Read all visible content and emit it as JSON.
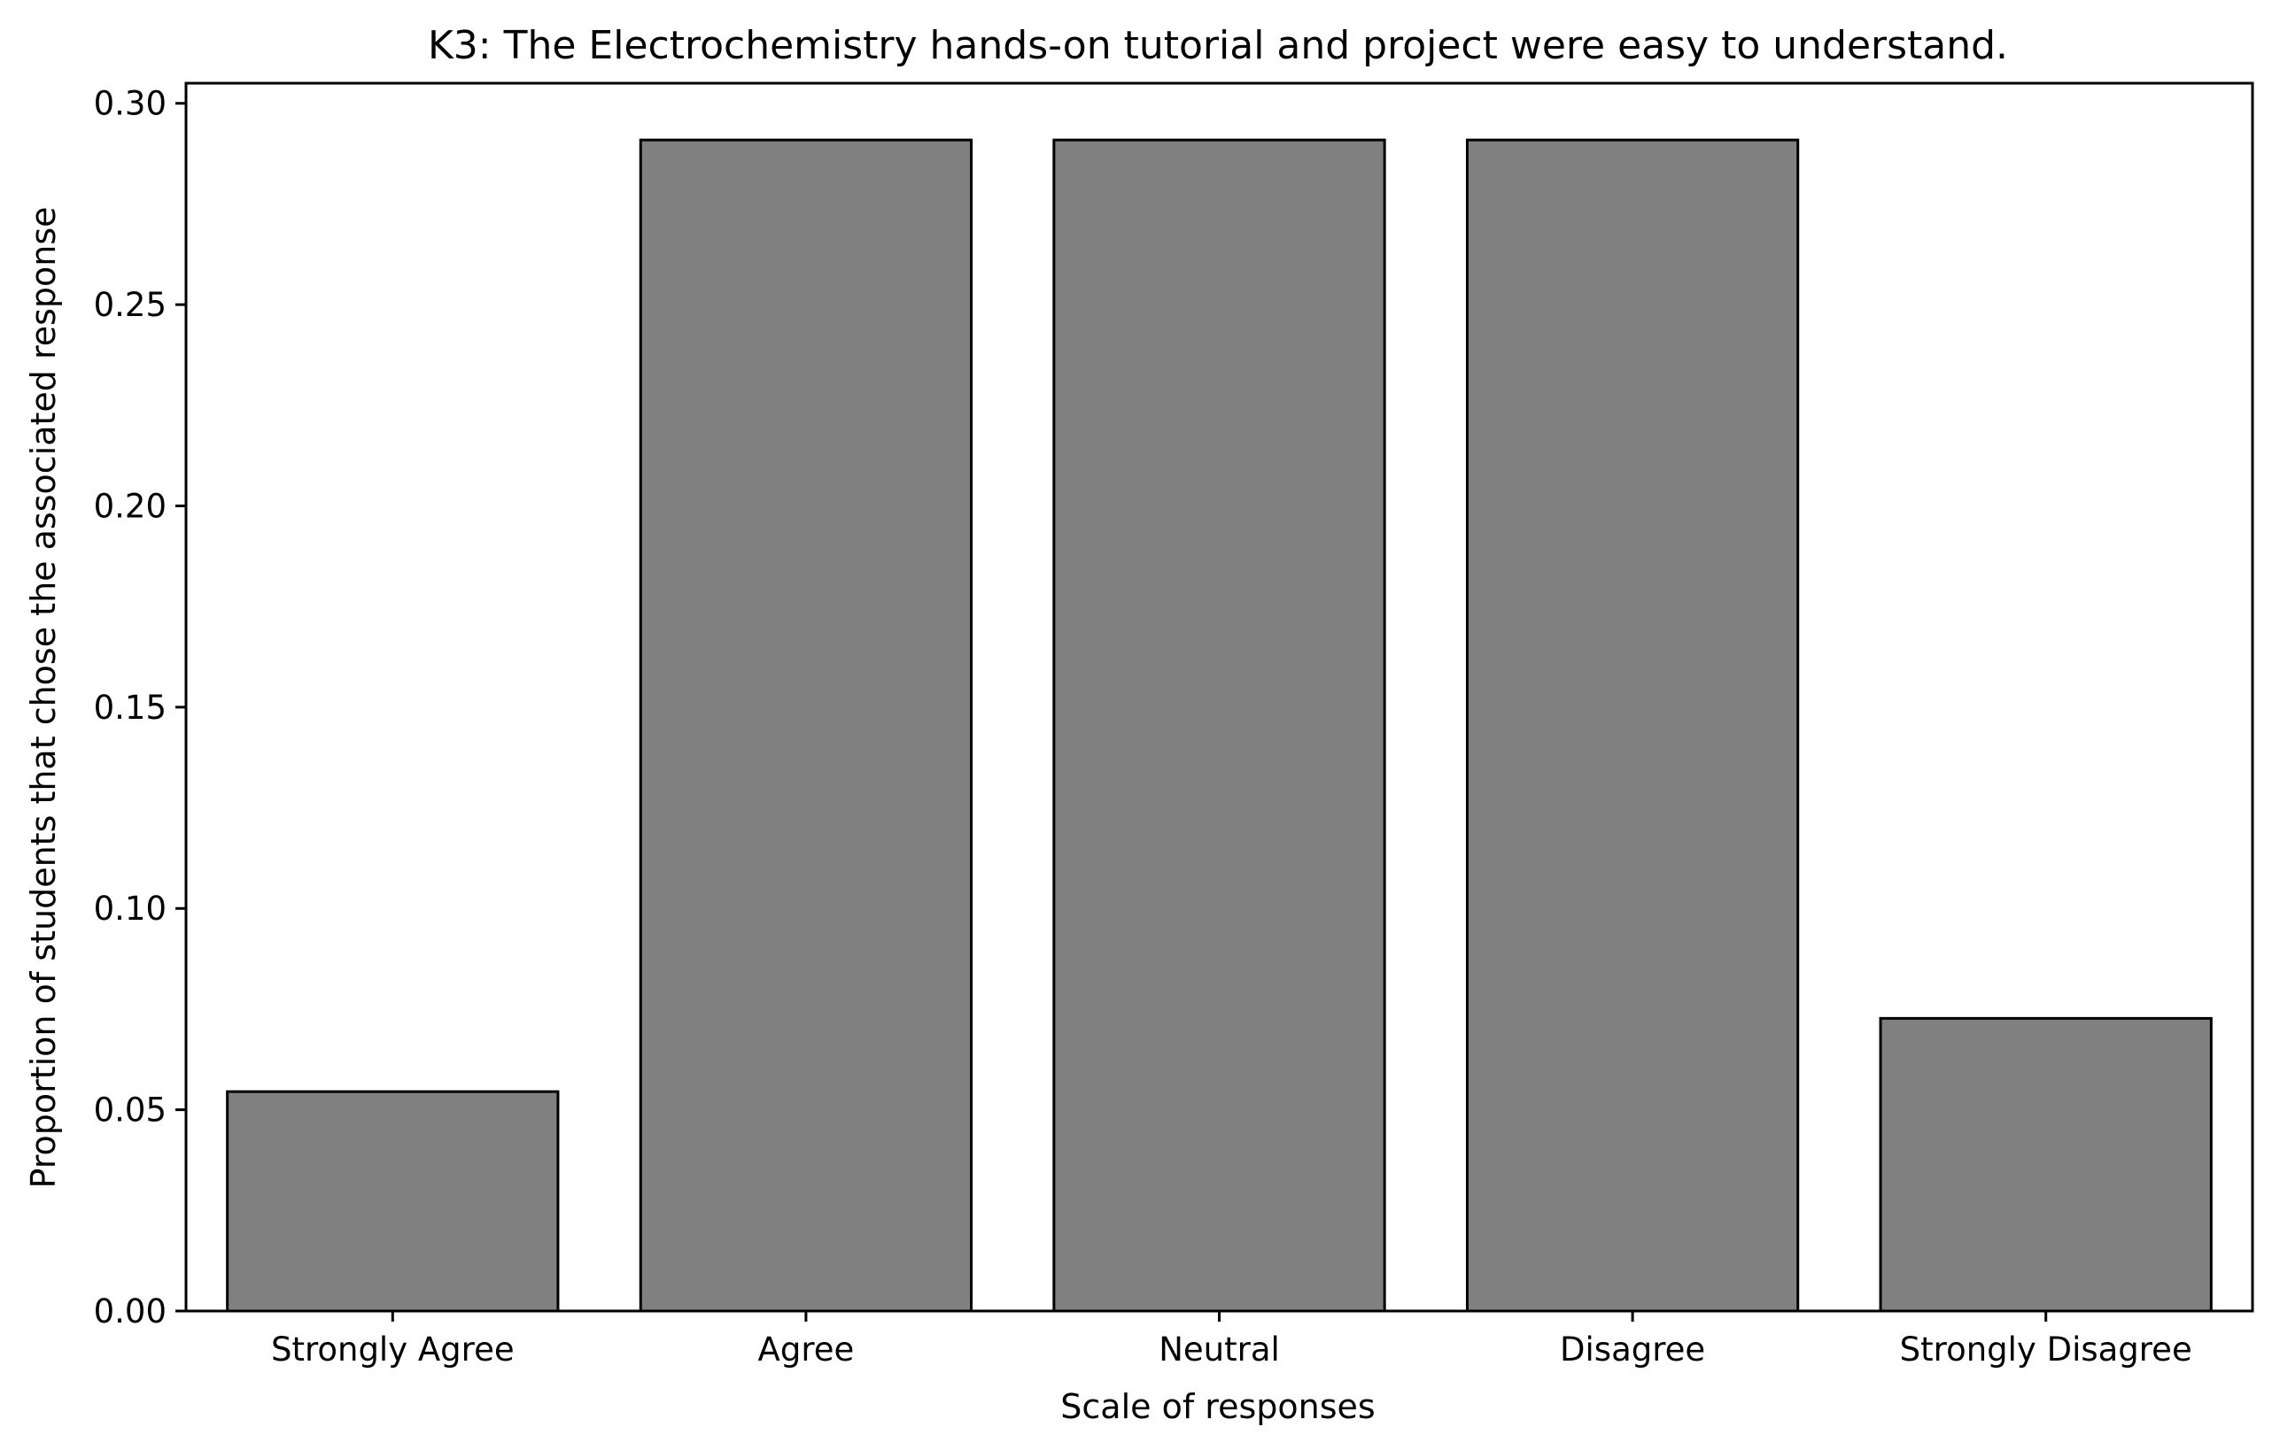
{
  "chart_data": {
    "type": "bar",
    "title": "K3: The Electrochemistry hands-on tutorial and project were easy to understand.",
    "xlabel": "Scale of responses",
    "ylabel": "Proportion of students that chose the associated response",
    "categories": [
      "Strongly Agree",
      "Agree",
      "Neutral",
      "Disagree",
      "Strongly Disagree"
    ],
    "values": [
      0.0545,
      0.2909,
      0.2909,
      0.2909,
      0.0727
    ],
    "ylim": [
      0,
      0.305
    ],
    "yticks": [
      0.0,
      0.05,
      0.1,
      0.15,
      0.2,
      0.25,
      0.3
    ],
    "ytick_labels": [
      "0.00",
      "0.05",
      "0.10",
      "0.15",
      "0.20",
      "0.25",
      "0.30"
    ],
    "grid": false,
    "legend": "none",
    "bar_color": "#808080",
    "edge_color": "#000000"
  }
}
